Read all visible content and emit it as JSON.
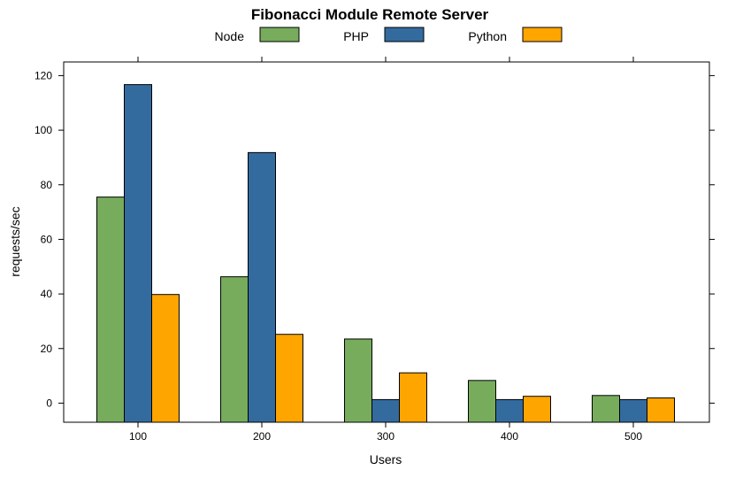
{
  "chart_data": {
    "type": "bar",
    "title": "Fibonacci Module Remote Server",
    "xlabel": "Users",
    "ylabel": "requests/sec",
    "categories": [
      "100",
      "200",
      "300",
      "400",
      "500"
    ],
    "series": [
      {
        "name": "Node",
        "color": "#77ac5d",
        "values": [
          75.5,
          46.3,
          23.5,
          8.3,
          2.8
        ]
      },
      {
        "name": "PHP",
        "color": "#346b9f",
        "values": [
          116.7,
          91.8,
          1.3,
          1.3,
          1.3
        ]
      },
      {
        "name": "Python",
        "color": "#ffa500",
        "values": [
          39.8,
          25.2,
          11.1,
          2.5,
          1.9
        ]
      }
    ],
    "ylim": [
      -7,
      125
    ],
    "yticks": [
      0,
      20,
      40,
      60,
      80,
      100,
      120
    ],
    "legend_position": "top",
    "grid": false
  }
}
